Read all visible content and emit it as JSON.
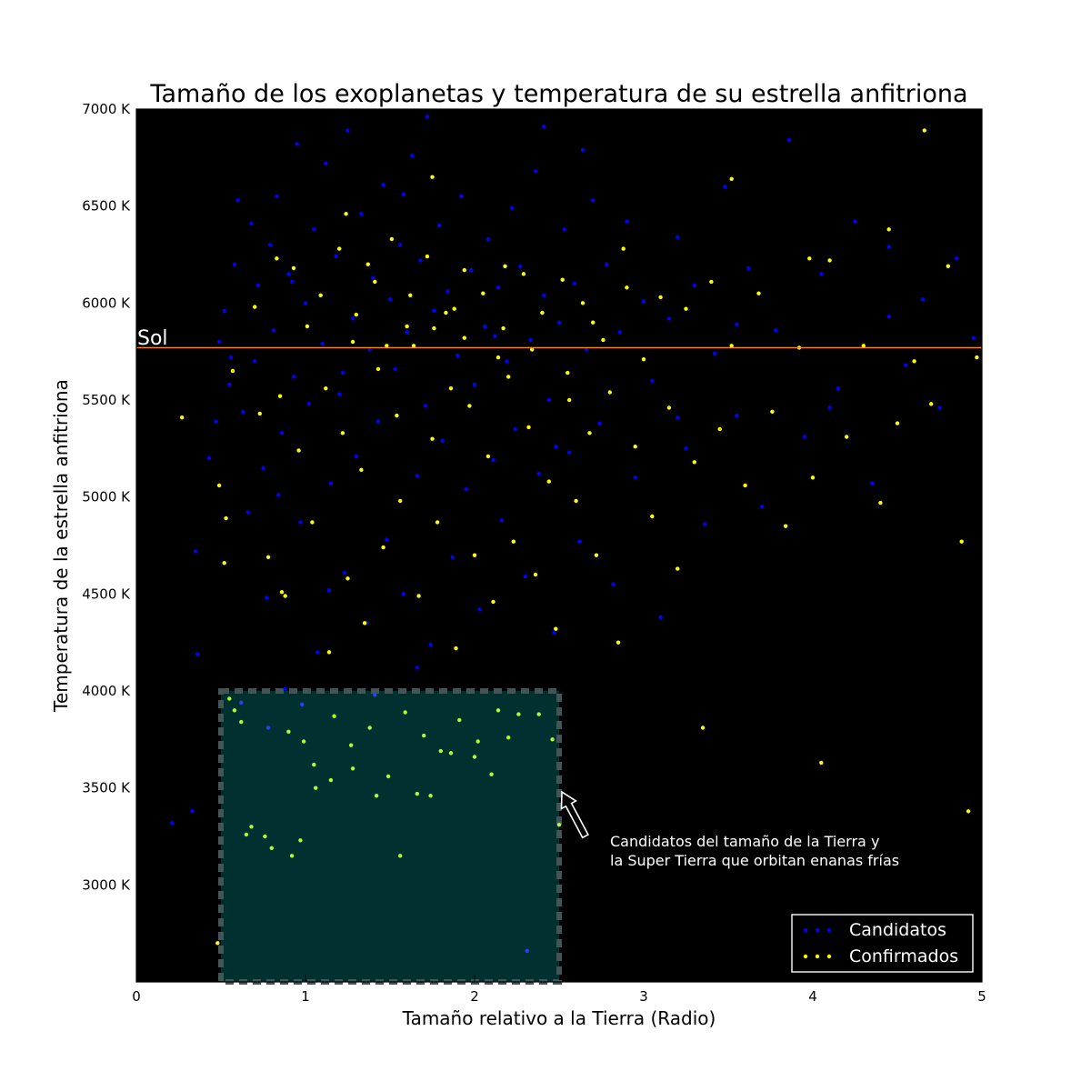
{
  "chart_data": {
    "type": "scatter",
    "title": "Tamaño de los exoplanetas y temperatura de su estrella anfitriona",
    "xlabel": "Tamaño relativo a la Tierra (Radio)",
    "ylabel": "Temperatura de la estrella anfitriona",
    "xlim": [
      0,
      5
    ],
    "ylim": [
      2500,
      7000
    ],
    "xticks": [
      0,
      1,
      2,
      3,
      4,
      5
    ],
    "xtick_labels": [
      "0",
      "1",
      "2",
      "3",
      "4",
      "5"
    ],
    "yticks": [
      3000,
      3500,
      4000,
      4500,
      5000,
      5500,
      6000,
      6500,
      7000
    ],
    "ytick_labels": [
      "3000 K",
      "3500 K",
      "4000 K",
      "4500 K",
      "5000 K",
      "5500 K",
      "6000 K",
      "6500 K",
      "7000 K"
    ],
    "background": "#000000",
    "grid": false,
    "legend_position": "lower-right",
    "series": [
      {
        "name": "Candidatos",
        "color": "#0000ff",
        "points": [
          [
            0.21,
            3320
          ],
          [
            0.33,
            3380
          ],
          [
            0.36,
            4190
          ],
          [
            0.35,
            4720
          ],
          [
            0.43,
            5200
          ],
          [
            0.47,
            5390
          ],
          [
            0.49,
            5800
          ],
          [
            0.52,
            5960
          ],
          [
            0.55,
            5580
          ],
          [
            0.58,
            6200
          ],
          [
            0.6,
            6530
          ],
          [
            0.63,
            5440
          ],
          [
            0.66,
            4920
          ],
          [
            0.68,
            6410
          ],
          [
            0.7,
            5700
          ],
          [
            0.72,
            6090
          ],
          [
            0.75,
            5150
          ],
          [
            0.77,
            4480
          ],
          [
            0.79,
            6300
          ],
          [
            0.81,
            5860
          ],
          [
            0.83,
            6550
          ],
          [
            0.86,
            5330
          ],
          [
            0.88,
            4010
          ],
          [
            0.9,
            6150
          ],
          [
            0.93,
            5620
          ],
          [
            0.95,
            6820
          ],
          [
            0.97,
            4870
          ],
          [
            1.0,
            6000
          ],
          [
            1.02,
            5480
          ],
          [
            1.05,
            6380
          ],
          [
            1.07,
            4200
          ],
          [
            1.1,
            5790
          ],
          [
            1.12,
            6720
          ],
          [
            1.15,
            5070
          ],
          [
            1.18,
            6240
          ],
          [
            1.2,
            5530
          ],
          [
            1.23,
            4610
          ],
          [
            1.25,
            6890
          ],
          [
            1.28,
            5920
          ],
          [
            1.3,
            5210
          ],
          [
            1.33,
            6460
          ],
          [
            1.36,
            4350
          ],
          [
            1.38,
            5760
          ],
          [
            1.4,
            6130
          ],
          [
            1.43,
            5390
          ],
          [
            1.46,
            6610
          ],
          [
            1.48,
            4780
          ],
          [
            1.5,
            6020
          ],
          [
            1.53,
            5660
          ],
          [
            1.56,
            6300
          ],
          [
            1.58,
            4500
          ],
          [
            1.6,
            5850
          ],
          [
            1.63,
            6760
          ],
          [
            1.66,
            5110
          ],
          [
            1.68,
            6220
          ],
          [
            1.71,
            5470
          ],
          [
            1.74,
            4240
          ],
          [
            1.76,
            5960
          ],
          [
            1.79,
            6400
          ],
          [
            1.81,
            5290
          ],
          [
            1.84,
            6060
          ],
          [
            1.87,
            4690
          ],
          [
            1.9,
            5730
          ],
          [
            1.92,
            6550
          ],
          [
            1.95,
            5040
          ],
          [
            1.98,
            6170
          ],
          [
            2.0,
            5580
          ],
          [
            2.03,
            4420
          ],
          [
            2.06,
            5880
          ],
          [
            2.08,
            6330
          ],
          [
            2.11,
            5190
          ],
          [
            2.14,
            6080
          ],
          [
            2.16,
            4880
          ],
          [
            2.19,
            5700
          ],
          [
            2.22,
            6490
          ],
          [
            2.24,
            5350
          ],
          [
            2.27,
            6190
          ],
          [
            2.3,
            4590
          ],
          [
            2.33,
            5810
          ],
          [
            2.36,
            6680
          ],
          [
            2.38,
            5120
          ],
          [
            2.41,
            6040
          ],
          [
            2.44,
            5500
          ],
          [
            2.47,
            4300
          ],
          [
            2.5,
            5900
          ],
          [
            2.53,
            6380
          ],
          [
            2.56,
            5230
          ],
          [
            2.59,
            6100
          ],
          [
            2.62,
            4770
          ],
          [
            2.66,
            5760
          ],
          [
            2.7,
            6530
          ],
          [
            2.74,
            5380
          ],
          [
            2.78,
            6200
          ],
          [
            2.82,
            4550
          ],
          [
            2.86,
            5850
          ],
          [
            2.9,
            6420
          ],
          [
            2.95,
            5100
          ],
          [
            3.0,
            6010
          ],
          [
            3.05,
            5600
          ],
          [
            3.1,
            4380
          ],
          [
            3.15,
            5920
          ],
          [
            3.2,
            6340
          ],
          [
            3.25,
            5250
          ],
          [
            3.3,
            6090
          ],
          [
            3.36,
            4860
          ],
          [
            3.42,
            5740
          ],
          [
            3.48,
            6600
          ],
          [
            3.55,
            5420
          ],
          [
            3.62,
            6180
          ],
          [
            3.7,
            4950
          ],
          [
            3.78,
            5860
          ],
          [
            3.86,
            6840
          ],
          [
            3.95,
            5310
          ],
          [
            4.05,
            6150
          ],
          [
            4.15,
            5560
          ],
          [
            4.25,
            6420
          ],
          [
            4.35,
            5070
          ],
          [
            4.45,
            6290
          ],
          [
            4.55,
            5680
          ],
          [
            4.65,
            6020
          ],
          [
            4.75,
            5460
          ],
          [
            4.85,
            6230
          ],
          [
            4.95,
            5820
          ],
          [
            0.62,
            3940
          ],
          [
            0.78,
            3810
          ],
          [
            0.98,
            3930
          ],
          [
            1.41,
            3980
          ],
          [
            2.31,
            2660
          ],
          [
            1.72,
            6960
          ],
          [
            2.41,
            6910
          ],
          [
            2.64,
            6790
          ],
          [
            1.58,
            6560
          ],
          [
            0.92,
            6110
          ],
          [
            1.22,
            5640
          ],
          [
            2.12,
            5830
          ],
          [
            2.48,
            5260
          ],
          [
            0.56,
            5720
          ],
          [
            0.84,
            5010
          ],
          [
            1.14,
            4520
          ],
          [
            1.66,
            4120
          ],
          [
            3.2,
            5410
          ],
          [
            3.55,
            5890
          ],
          [
            4.45,
            5930
          ],
          [
            4.1,
            5460
          ]
        ]
      },
      {
        "name": "Confirmados",
        "color": "#ffff00",
        "points": [
          [
            0.27,
            5410
          ],
          [
            0.49,
            5060
          ],
          [
            0.53,
            4890
          ],
          [
            0.57,
            5650
          ],
          [
            0.62,
            3840
          ],
          [
            0.65,
            3260
          ],
          [
            0.7,
            5980
          ],
          [
            0.73,
            5430
          ],
          [
            0.78,
            4690
          ],
          [
            0.8,
            3190
          ],
          [
            0.83,
            6230
          ],
          [
            0.85,
            5520
          ],
          [
            0.88,
            4490
          ],
          [
            0.9,
            3790
          ],
          [
            0.93,
            6180
          ],
          [
            0.96,
            5240
          ],
          [
            0.99,
            3740
          ],
          [
            1.01,
            5880
          ],
          [
            1.04,
            4870
          ],
          [
            1.06,
            3500
          ],
          [
            1.09,
            6040
          ],
          [
            1.12,
            5560
          ],
          [
            1.14,
            4200
          ],
          [
            1.17,
            3870
          ],
          [
            1.2,
            6280
          ],
          [
            1.22,
            5330
          ],
          [
            1.25,
            4580
          ],
          [
            1.27,
            3720
          ],
          [
            1.3,
            5940
          ],
          [
            1.33,
            5140
          ],
          [
            1.35,
            4350
          ],
          [
            1.38,
            3810
          ],
          [
            1.41,
            6110
          ],
          [
            1.43,
            5660
          ],
          [
            1.46,
            4740
          ],
          [
            1.49,
            3560
          ],
          [
            1.51,
            6330
          ],
          [
            1.54,
            5420
          ],
          [
            1.56,
            4980
          ],
          [
            1.59,
            3890
          ],
          [
            1.62,
            6040
          ],
          [
            1.64,
            5780
          ],
          [
            1.67,
            4490
          ],
          [
            1.7,
            3770
          ],
          [
            1.72,
            6240
          ],
          [
            1.75,
            5300
          ],
          [
            1.78,
            4870
          ],
          [
            1.8,
            3690
          ],
          [
            1.83,
            5950
          ],
          [
            1.86,
            5560
          ],
          [
            1.89,
            4220
          ],
          [
            1.91,
            3850
          ],
          [
            1.94,
            6170
          ],
          [
            1.97,
            5470
          ],
          [
            2.0,
            4700
          ],
          [
            2.02,
            3740
          ],
          [
            2.05,
            6050
          ],
          [
            2.08,
            5210
          ],
          [
            2.11,
            4460
          ],
          [
            2.14,
            3900
          ],
          [
            2.17,
            5870
          ],
          [
            2.2,
            5620
          ],
          [
            2.23,
            4770
          ],
          [
            2.26,
            3880
          ],
          [
            2.29,
            6150
          ],
          [
            2.32,
            5360
          ],
          [
            2.36,
            4600
          ],
          [
            2.4,
            5950
          ],
          [
            2.44,
            5080
          ],
          [
            2.48,
            4320
          ],
          [
            2.52,
            6120
          ],
          [
            2.56,
            5500
          ],
          [
            2.6,
            4980
          ],
          [
            2.64,
            6000
          ],
          [
            2.68,
            5330
          ],
          [
            2.72,
            4700
          ],
          [
            2.76,
            5810
          ],
          [
            2.8,
            5540
          ],
          [
            2.85,
            4250
          ],
          [
            2.9,
            6080
          ],
          [
            2.95,
            5260
          ],
          [
            3.0,
            5710
          ],
          [
            3.05,
            4900
          ],
          [
            3.1,
            6030
          ],
          [
            3.15,
            5460
          ],
          [
            3.2,
            4630
          ],
          [
            3.25,
            5970
          ],
          [
            3.3,
            5180
          ],
          [
            3.35,
            3810
          ],
          [
            3.4,
            6110
          ],
          [
            3.45,
            5350
          ],
          [
            3.52,
            5780
          ],
          [
            3.6,
            5060
          ],
          [
            3.68,
            6050
          ],
          [
            3.76,
            5440
          ],
          [
            3.84,
            4850
          ],
          [
            3.92,
            5770
          ],
          [
            4.0,
            5100
          ],
          [
            4.05,
            3630
          ],
          [
            4.1,
            6220
          ],
          [
            4.2,
            5310
          ],
          [
            4.3,
            5780
          ],
          [
            4.4,
            4970
          ],
          [
            4.5,
            5380
          ],
          [
            4.6,
            5700
          ],
          [
            4.66,
            6890
          ],
          [
            4.7,
            5480
          ],
          [
            4.8,
            6190
          ],
          [
            4.88,
            4770
          ],
          [
            4.92,
            3380
          ],
          [
            4.97,
            5720
          ],
          [
            0.48,
            2700
          ],
          [
            0.52,
            4660
          ],
          [
            0.55,
            3960
          ],
          [
            0.58,
            3900
          ],
          [
            0.68,
            3300
          ],
          [
            0.76,
            3250
          ],
          [
            0.86,
            4510
          ],
          [
            0.92,
            3150
          ],
          [
            0.97,
            3230
          ],
          [
            1.05,
            3620
          ],
          [
            1.15,
            3540
          ],
          [
            1.28,
            3600
          ],
          [
            1.42,
            3460
          ],
          [
            1.56,
            3150
          ],
          [
            1.66,
            3470
          ],
          [
            1.74,
            3460
          ],
          [
            1.86,
            3680
          ],
          [
            2.0,
            3660
          ],
          [
            2.1,
            3570
          ],
          [
            2.2,
            3760
          ],
          [
            2.38,
            3880
          ],
          [
            2.46,
            3750
          ],
          [
            2.5,
            3310
          ],
          [
            1.24,
            6460
          ],
          [
            1.75,
            6650
          ],
          [
            2.18,
            6190
          ],
          [
            2.88,
            6280
          ],
          [
            3.52,
            6640
          ],
          [
            3.98,
            6230
          ],
          [
            4.45,
            6380
          ],
          [
            1.37,
            6200
          ],
          [
            1.88,
            5970
          ],
          [
            2.55,
            5640
          ],
          [
            1.6,
            5880
          ],
          [
            1.28,
            5800
          ],
          [
            2.34,
            5760
          ],
          [
            1.94,
            5820
          ],
          [
            2.7,
            5900
          ],
          [
            1.48,
            5780
          ],
          [
            1.76,
            5870
          ],
          [
            2.14,
            5720
          ]
        ]
      }
    ],
    "hline": {
      "y": 5770,
      "label": "Sol",
      "color": "#ff8c00"
    },
    "highlight_region": {
      "x": [
        0.5,
        2.5
      ],
      "y": [
        2500,
        4000
      ],
      "fill": "#003030",
      "edge": "#445555"
    },
    "annotation": {
      "text_lines": [
        "Candidatos del tamaño de la Tierra y",
        "la Super Tierra que orbitan enanas frías"
      ],
      "xy": [
        2.5,
        3470
      ],
      "xytext": [
        2.73,
        3200
      ]
    }
  }
}
